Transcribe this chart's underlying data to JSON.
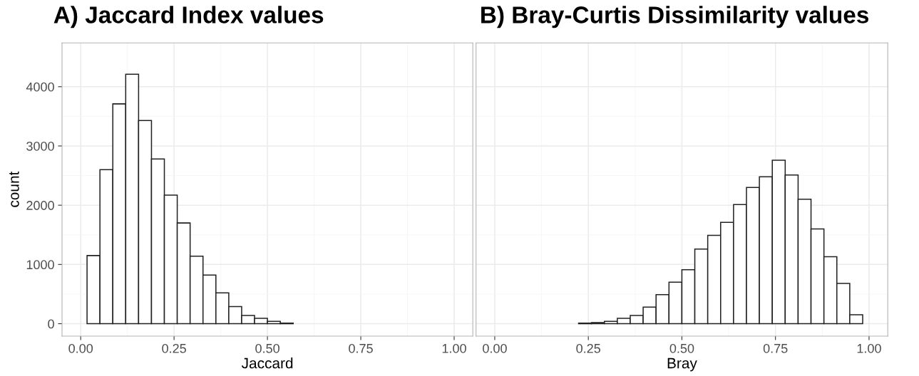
{
  "chart_data": [
    {
      "type": "histogram",
      "title": "A) Jaccard Index values",
      "xlabel": "Jaccard",
      "ylabel": "count",
      "bins": [
        0.017,
        0.0515,
        0.086,
        0.1205,
        0.155,
        0.1895,
        0.224,
        0.2585,
        0.293,
        0.3275,
        0.362,
        0.3965,
        0.431,
        0.4655,
        0.5,
        0.5345,
        0.569,
        0.6035,
        0.638,
        0.6725,
        0.707,
        0.7415,
        0.776,
        0.8105,
        0.845,
        0.8795,
        0.914,
        0.9485,
        0.983
      ],
      "values": [
        1150,
        2600,
        3710,
        4210,
        3430,
        2780,
        2170,
        1700,
        1140,
        820,
        520,
        290,
        140,
        90,
        40,
        10,
        0,
        0,
        0,
        0,
        0,
        0,
        0,
        0,
        0,
        0,
        0,
        0
      ],
      "color": "#ffffff",
      "xlim": [
        -0.05,
        1.05
      ],
      "xticks": [
        {
          "value": 0,
          "label": "0.00"
        },
        {
          "value": 0.25,
          "label": "0.25"
        },
        {
          "value": 0.5,
          "label": "0.50"
        },
        {
          "value": 0.75,
          "label": "0.75"
        },
        {
          "value": 1,
          "label": "1.00"
        }
      ],
      "ylim": [
        -210,
        4740
      ],
      "yticks": [
        0,
        1000,
        2000,
        3000,
        4000
      ],
      "grid": true
    },
    {
      "type": "histogram",
      "title": "B) Bray-Curtis Dissimilarity values",
      "xlabel": "Bray",
      "bins": [
        0.017,
        0.0515,
        0.086,
        0.1205,
        0.155,
        0.1895,
        0.224,
        0.2585,
        0.293,
        0.3275,
        0.362,
        0.3965,
        0.431,
        0.4655,
        0.5,
        0.5345,
        0.569,
        0.6035,
        0.638,
        0.6725,
        0.707,
        0.7415,
        0.776,
        0.8105,
        0.845,
        0.8795,
        0.914,
        0.9485,
        0.983
      ],
      "values": [
        0,
        0,
        0,
        0,
        0,
        0,
        10,
        20,
        40,
        90,
        140,
        280,
        490,
        700,
        910,
        1260,
        1490,
        1710,
        2010,
        2300,
        2480,
        2760,
        2510,
        2100,
        1600,
        1130,
        680,
        150
      ],
      "color": "#ffffff",
      "xlim": [
        -0.05,
        1.05
      ],
      "xticks": [
        {
          "value": 0,
          "label": "0.00"
        },
        {
          "value": 0.25,
          "label": "0.25"
        },
        {
          "value": 0.5,
          "label": "0.50"
        },
        {
          "value": 0.75,
          "label": "0.75"
        },
        {
          "value": 1,
          "label": "1.00"
        }
      ],
      "ylim": [
        -210,
        4740
      ],
      "yticks": [
        0,
        1000,
        2000,
        3000,
        4000
      ],
      "grid": true,
      "tick_labels": "x"
    }
  ]
}
